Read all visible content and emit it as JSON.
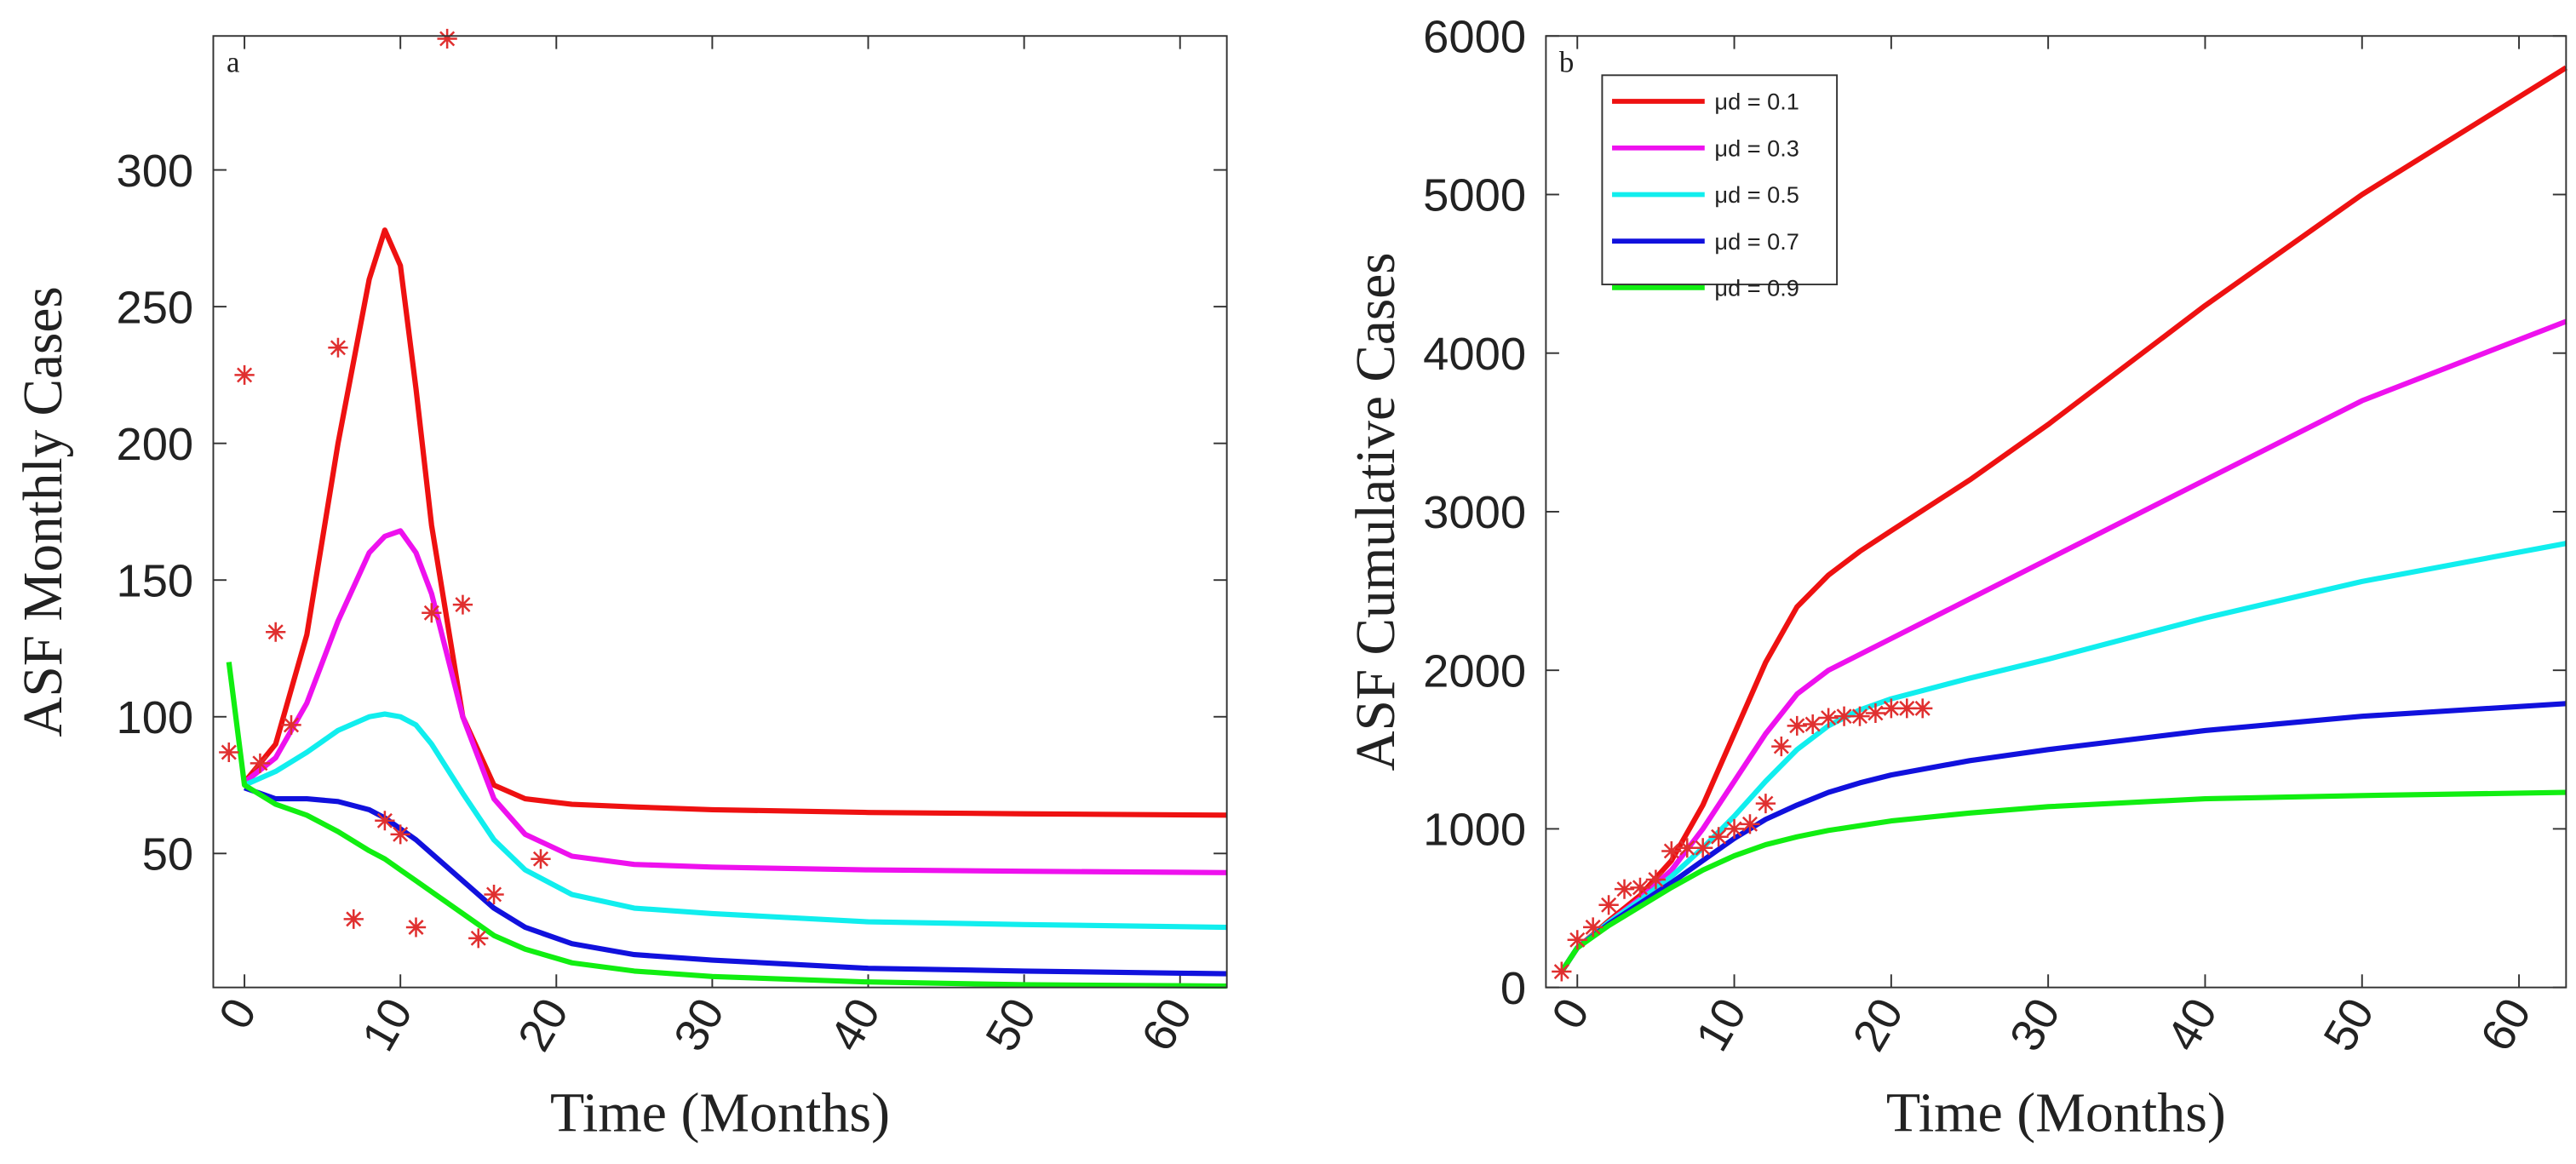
{
  "chart_data": [
    {
      "type": "line",
      "annotation": "a",
      "xlabel": "Time (Months)",
      "ylabel": "ASF Monthly Cases",
      "xlim": [
        -2,
        63
      ],
      "ylim": [
        1,
        349
      ],
      "xticks": [
        0,
        10,
        20,
        30,
        40,
        50,
        60
      ],
      "yticks": [
        50,
        100,
        150,
        200,
        250,
        300
      ],
      "x": [
        -1,
        0,
        2,
        4,
        6,
        8,
        9,
        10,
        11,
        12,
        14,
        16,
        18,
        21,
        25,
        30,
        40,
        50,
        63
      ],
      "series": [
        {
          "name": "μd = 0.1",
          "color": "#ee1111",
          "values": [
            null,
            76,
            90,
            130,
            200,
            260,
            278,
            265,
            220,
            170,
            100,
            75,
            70,
            68,
            67,
            66,
            65,
            64.5,
            64
          ]
        },
        {
          "name": "μd = 0.3",
          "color": "#ee11ee",
          "values": [
            null,
            76,
            85,
            105,
            135,
            160,
            166,
            168,
            160,
            145,
            100,
            70,
            57,
            49,
            46,
            45,
            44,
            43.5,
            43
          ]
        },
        {
          "name": "μd = 0.5",
          "color": "#11eeee",
          "values": [
            null,
            75,
            80,
            87,
            95,
            100,
            101,
            100,
            97,
            90,
            72,
            55,
            44,
            35,
            30,
            28,
            25,
            24,
            23
          ]
        },
        {
          "name": "μd = 0.7",
          "color": "#1111dd",
          "values": [
            null,
            74,
            70,
            70,
            69,
            66,
            63,
            59,
            55,
            50,
            40,
            30,
            23,
            17,
            13,
            11,
            8,
            7,
            6
          ]
        },
        {
          "name": "μd = 0.9",
          "color": "#11ee11",
          "values": [
            120,
            75,
            68,
            64,
            58,
            51,
            48,
            44,
            40,
            36,
            28,
            20,
            15,
            10,
            7,
            5,
            3,
            2,
            1.5
          ]
        }
      ],
      "data_points": {
        "color": "#e03030",
        "x": [
          -1,
          0,
          1,
          2,
          3,
          6,
          7,
          9,
          10,
          11,
          12,
          13,
          14,
          15,
          16,
          19
        ],
        "values": [
          87,
          225,
          83,
          131,
          97,
          235,
          26,
          62,
          57,
          23,
          138,
          348,
          141,
          19,
          35,
          48
        ]
      }
    },
    {
      "type": "line",
      "annotation": "b",
      "xlabel": "Time (Months)",
      "ylabel": "ASF Cumulative Cases",
      "legend": "upper left",
      "xlim": [
        -2,
        63
      ],
      "ylim": [
        0,
        6000
      ],
      "xticks": [
        0,
        10,
        20,
        30,
        40,
        50,
        60
      ],
      "yticks": [
        0,
        1000,
        2000,
        3000,
        4000,
        5000,
        6000
      ],
      "x": [
        -1,
        0,
        2,
        4,
        6,
        8,
        10,
        12,
        14,
        16,
        18,
        20,
        25,
        30,
        40,
        50,
        63
      ],
      "series": [
        {
          "name": "μd = 0.1",
          "color": "#ee1111",
          "values": [
            100,
            250,
            420,
            580,
            800,
            1150,
            1600,
            2050,
            2400,
            2600,
            2750,
            2880,
            3200,
            3550,
            4300,
            5000,
            5800
          ]
        },
        {
          "name": "μd = 0.3",
          "color": "#ee11ee",
          "values": [
            100,
            250,
            410,
            560,
            740,
            1000,
            1300,
            1600,
            1850,
            2000,
            2100,
            2200,
            2450,
            2700,
            3200,
            3700,
            4200
          ]
        },
        {
          "name": "μd = 0.5",
          "color": "#11eeee",
          "values": [
            100,
            250,
            410,
            550,
            700,
            880,
            1080,
            1300,
            1500,
            1650,
            1750,
            1820,
            1950,
            2070,
            2330,
            2560,
            2800
          ]
        },
        {
          "name": "μd = 0.7",
          "color": "#1111dd",
          "values": [
            100,
            250,
            400,
            530,
            660,
            800,
            940,
            1060,
            1150,
            1230,
            1290,
            1340,
            1430,
            1500,
            1620,
            1710,
            1790
          ]
        },
        {
          "name": "μd = 0.9",
          "color": "#11ee11",
          "values": [
            100,
            250,
            390,
            510,
            630,
            740,
            830,
            900,
            950,
            990,
            1020,
            1050,
            1100,
            1140,
            1190,
            1210,
            1230
          ]
        }
      ],
      "data_points": {
        "color": "#e03030",
        "x": [
          -1,
          0,
          1,
          2,
          3,
          4,
          5,
          6,
          7,
          8,
          9,
          10,
          11,
          12,
          13,
          14,
          15,
          16,
          17,
          18,
          19,
          20,
          21,
          22
        ],
        "values": [
          100,
          300,
          380,
          520,
          620,
          630,
          680,
          860,
          880,
          880,
          950,
          1000,
          1030,
          1160,
          1520,
          1650,
          1660,
          1700,
          1710,
          1710,
          1730,
          1760,
          1760,
          1760
        ]
      }
    }
  ]
}
